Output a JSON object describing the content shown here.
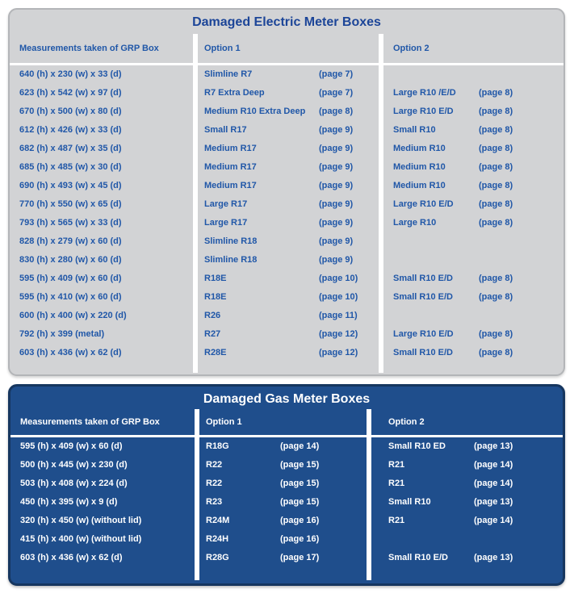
{
  "colors": {
    "electric_panel_bg": "#d2d3d5",
    "electric_panel_border": "#b3b5b8",
    "electric_text_blue": "#2057a8",
    "gas_panel_bg": "#1f4e8c",
    "gas_panel_border": "#16365f",
    "gas_text": "#ffffff",
    "divider": "#ffffff"
  },
  "electric": {
    "title": "Damaged Electric Meter Boxes",
    "headers": [
      "Measurements taken of GRP Box",
      "Option 1",
      "Option 2"
    ],
    "rows": [
      {
        "m": "640 (h) x 230 (w) x 33 (d)",
        "o1": "Slimline R7",
        "p1": "(page 7)",
        "o2": "",
        "p2": ""
      },
      {
        "m": "623 (h) x 542 (w) x 97 (d)",
        "o1": "R7 Extra Deep",
        "p1": "(page 7)",
        "o2": "Large R10 /E/D",
        "p2": "(page 8)"
      },
      {
        "m": "670 (h) x 500 (w) x 80 (d)",
        "o1": "Medium R10 Extra Deep",
        "p1": "(page 8)",
        "o2": "Large R10 E/D",
        "p2": "(page 8)"
      },
      {
        "m": "612 (h) x 426 (w) x 33 (d)",
        "o1": "Small R17",
        "p1": "(page 9)",
        "o2": "Small R10",
        "p2": "(page 8)"
      },
      {
        "m": "682 (h) x 487 (w) x 35 (d)",
        "o1": "Medium R17",
        "p1": "(page 9)",
        "o2": "Medium R10",
        "p2": "(page 8)"
      },
      {
        "m": "685 (h) x 485 (w) x 30 (d)",
        "o1": "Medium R17",
        "p1": "(page 9)",
        "o2": "Medium R10",
        "p2": "(page 8)"
      },
      {
        "m": "690 (h) x 493 (w) x 45 (d)",
        "o1": "Medium R17",
        "p1": "(page 9)",
        "o2": "Medium R10",
        "p2": "(page 8)"
      },
      {
        "m": "770 (h) x 550 (w) x 65 (d)",
        "o1": "Large R17",
        "p1": "(page 9)",
        "o2": "Large R10 E/D",
        "p2": "(page 8)"
      },
      {
        "m": "793 (h) x 565 (w) x 33 (d)",
        "o1": "Large R17",
        "p1": "(page 9)",
        "o2": "Large R10",
        "p2": "(page 8)"
      },
      {
        "m": "828 (h) x 279 (w) x 60 (d)",
        "o1": "Slimline R18",
        "p1": "(page 9)",
        "o2": "",
        "p2": ""
      },
      {
        "m": "830 (h) x 280 (w) x 60 (d)",
        "o1": "Slimline R18",
        "p1": "(page 9)",
        "o2": "",
        "p2": ""
      },
      {
        "m": "595 (h) x 409 (w) x 60 (d)",
        "o1": "R18E",
        "p1": "(page 10)",
        "o2": "Small R10 E/D",
        "p2": "(page 8)"
      },
      {
        "m": "595 (h) x 410 (w) x 60 (d)",
        "o1": "R18E",
        "p1": "(page 10)",
        "o2": "Small R10 E/D",
        "p2": "(page 8)"
      },
      {
        "m": "600 (h) x 400 (w) x 220 (d)",
        "o1": "R26",
        "p1": "(page 11)",
        "o2": "",
        "p2": ""
      },
      {
        "m": "792 (h) x 399 (metal)",
        "o1": "R27",
        "p1": "(page 12)",
        "o2": "Large R10 E/D",
        "p2": "(page 8)"
      },
      {
        "m": "603 (h) x 436 (w) x 62 (d)",
        "o1": "R28E",
        "p1": "(page 12)",
        "o2": "Small R10 E/D",
        "p2": "(page 8)"
      }
    ]
  },
  "gas": {
    "title": "Damaged Gas Meter Boxes",
    "headers": [
      "Measurements taken of GRP Box",
      "Option 1",
      "Option 2"
    ],
    "rows": [
      {
        "m": "595 (h) x 409 (w) x 60 (d)",
        "o1": "R18G",
        "p1": "(page 14)",
        "o2": "Small R10 ED",
        "p2": "(page 13)"
      },
      {
        "m": "500 (h) x 445 (w) x 230 (d)",
        "o1": "R22",
        "p1": "(page 15)",
        "o2": "R21",
        "p2": "(page 14)"
      },
      {
        "m": "503 (h) x 408 (w) x 224 (d)",
        "o1": "R22",
        "p1": "(page 15)",
        "o2": "R21",
        "p2": "(page 14)"
      },
      {
        "m": "450 (h) x 395 (w) x 9 (d)",
        "o1": "R23",
        "p1": "(page 15)",
        "o2": "Small R10",
        "p2": "(page 13)"
      },
      {
        "m": "320 (h) x 450 (w) (without lid)",
        "o1": "R24M",
        "p1": "(page 16)",
        "o2": "R21",
        "p2": "(page 14)"
      },
      {
        "m": "415 (h) x 400 (w) (without lid)",
        "o1": "R24H",
        "p1": "(page 16)",
        "o2": "",
        "p2": ""
      },
      {
        "m": "603 (h) x 436 (w) x 62 (d)",
        "o1": "R28G",
        "p1": "(page 17)",
        "o2": "Small R10 E/D",
        "p2": "(page 13)"
      }
    ]
  }
}
